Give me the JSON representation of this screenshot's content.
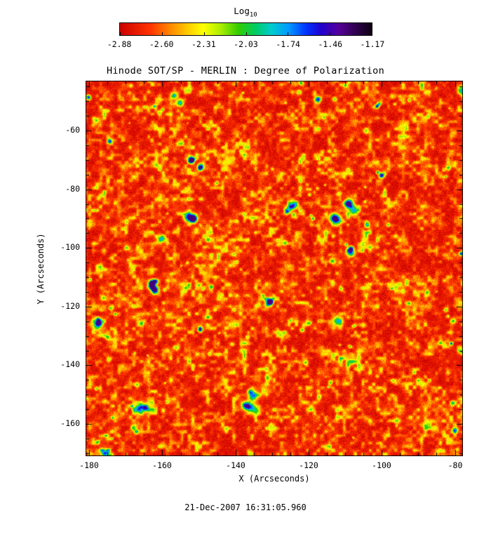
{
  "chart_data": {
    "type": "heatmap",
    "title": "Hinode SOT/SP - MERLIN : Degree of Polarization",
    "xlabel": "X (Arcseconds)",
    "ylabel": "Y (Arcseconds)",
    "caption": "21-Dec-2007 16:31:05.960",
    "x_ticks": [
      "-180",
      "-160",
      "-140",
      "-120",
      "-100",
      "-80"
    ],
    "y_ticks": [
      "-60",
      "-80",
      "-100",
      "-120",
      "-140",
      "-160"
    ],
    "x_range": [
      -181,
      -77.8
    ],
    "y_range": [
      -171,
      -43
    ],
    "x_minor_step": 5,
    "y_minor_step": 5,
    "grid": false,
    "colorbar": {
      "label_base": "Log",
      "label_sub": "10",
      "tick_labels": [
        "-2.88",
        "-2.60",
        "-2.31",
        "-2.03",
        "-1.74",
        "-1.46",
        "-1.17"
      ],
      "tick_values": [
        -2.88,
        -2.6,
        -2.31,
        -2.03,
        -1.74,
        -1.46,
        -1.17
      ],
      "value_range": [
        -2.88,
        -1.17
      ],
      "orientation": "horizontal",
      "position": "top"
    },
    "colormap_stops": [
      [
        0.0,
        "#cc0000"
      ],
      [
        0.12,
        "#ff3300"
      ],
      [
        0.2,
        "#ff8800"
      ],
      [
        0.27,
        "#ffcc00"
      ],
      [
        0.33,
        "#ffff00"
      ],
      [
        0.4,
        "#aaee00"
      ],
      [
        0.47,
        "#33cc00"
      ],
      [
        0.54,
        "#00cc66"
      ],
      [
        0.6,
        "#00cccc"
      ],
      [
        0.67,
        "#0099ff"
      ],
      [
        0.74,
        "#0033ff"
      ],
      [
        0.8,
        "#2200cc"
      ],
      [
        0.87,
        "#550099"
      ],
      [
        0.93,
        "#330055"
      ],
      [
        1.0,
        "#0d0010"
      ]
    ],
    "value_summary": {
      "background_log10_range": [
        -2.9,
        -2.5
      ],
      "network_speckles_log10_range": [
        -2.5,
        -2.0
      ],
      "strong_features_log10_range": [
        -2.0,
        -1.2
      ],
      "description": "Quiet-Sun degree-of-polarization map: predominantly red (low polarization) granular field, dense scattering of yellow-green network bright points, sparse green-rimmed blue and dark-navy flux concentrations"
    },
    "field": {
      "seed": 1221,
      "base": 0.03,
      "amp": 0.62,
      "gamma": 3.0,
      "speckle": 0.11,
      "octaves": [
        [
          0.19,
          0.5
        ],
        [
          0.075,
          0.3
        ],
        [
          0.035,
          0.2
        ]
      ],
      "small_blobs": {
        "count": 130,
        "radius": [
          1.5,
          4.5
        ],
        "amp": [
          0.18,
          0.4
        ]
      },
      "large_blobs": {
        "count": 32,
        "radius": [
          2.5,
          7.0
        ],
        "amp": [
          0.45,
          0.8
        ]
      },
      "clamp_max": 0.9
    }
  }
}
